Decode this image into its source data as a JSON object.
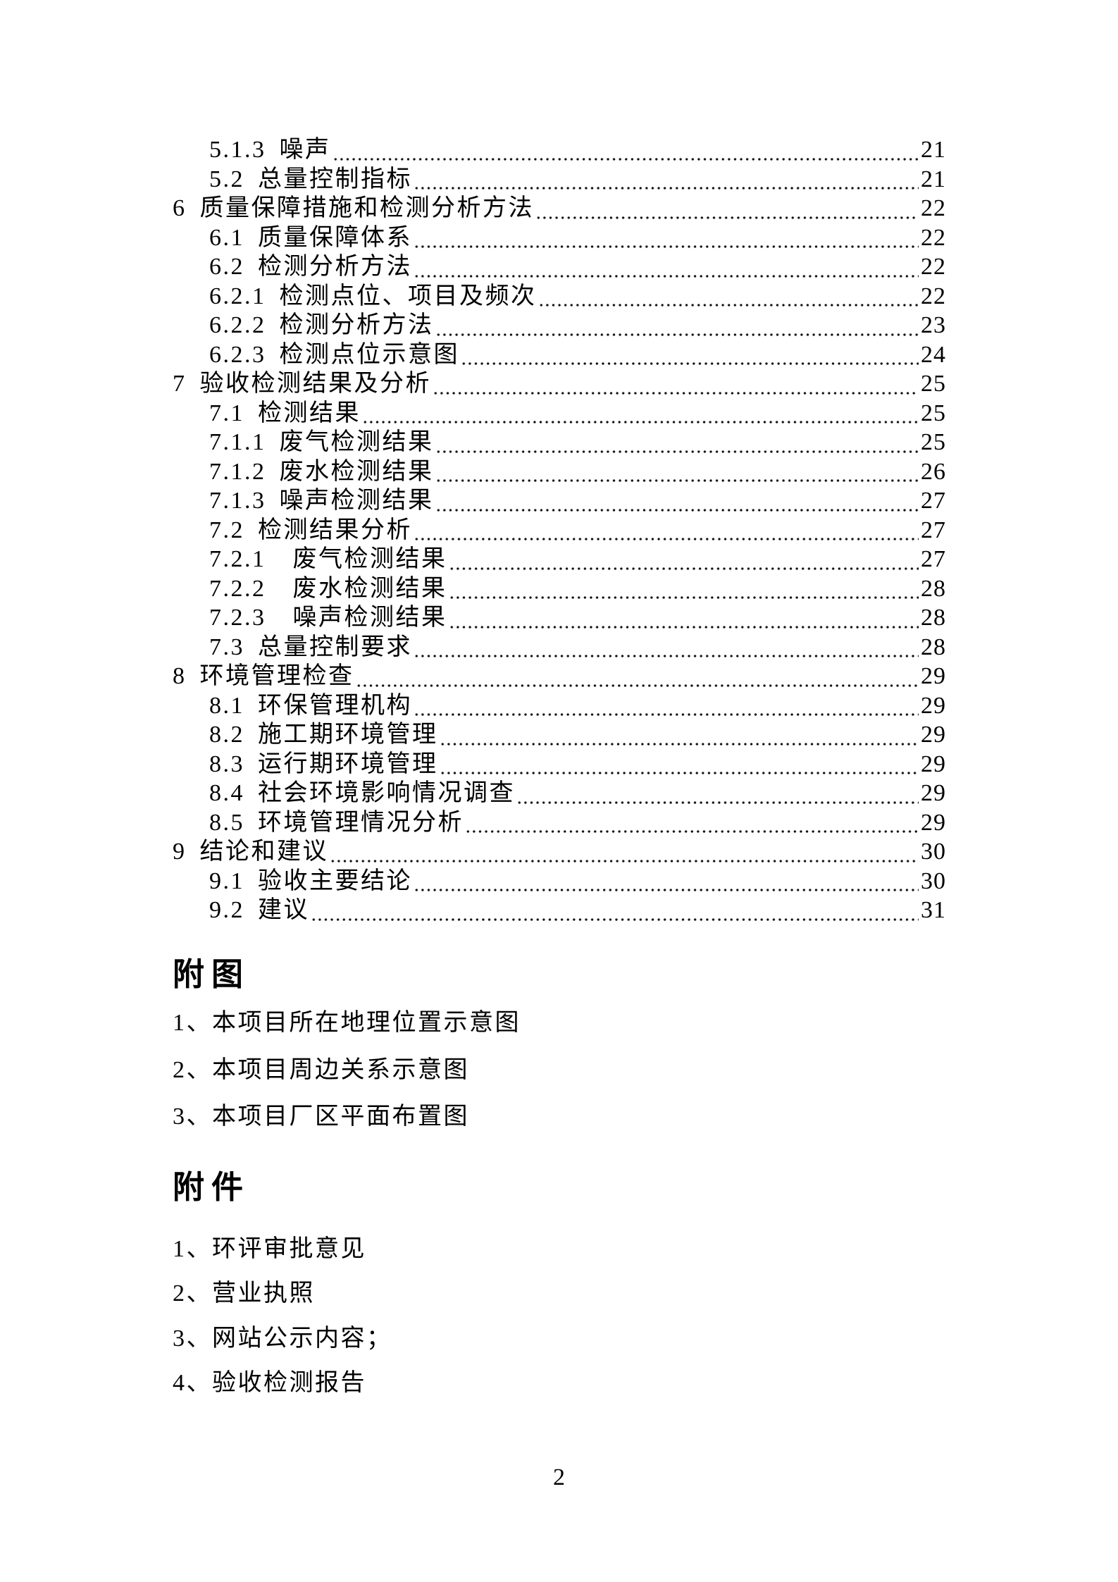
{
  "toc": {
    "items": [
      {
        "label": "5.1.3 噪声",
        "page": "21",
        "level": 2
      },
      {
        "label": "5.2 总量控制指标",
        "page": "21",
        "level": 2
      },
      {
        "label": "6 质量保障措施和检测分析方法",
        "page": "22",
        "level": 1
      },
      {
        "label": "6.1 质量保障体系",
        "page": "22",
        "level": 2
      },
      {
        "label": "6.2 检测分析方法",
        "page": "22",
        "level": 2
      },
      {
        "label": "6.2.1 检测点位、项目及频次",
        "page": "22",
        "level": 2
      },
      {
        "label": "6.2.2 检测分析方法",
        "page": "23",
        "level": 2
      },
      {
        "label": "6.2.3 检测点位示意图",
        "page": "24",
        "level": 2
      },
      {
        "label": "7 验收检测结果及分析",
        "page": "25",
        "level": 1
      },
      {
        "label": "7.1 检测结果",
        "page": "25",
        "level": 2
      },
      {
        "label": "7.1.1 废气检测结果",
        "page": "25",
        "level": 2
      },
      {
        "label": "7.1.2 废水检测结果",
        "page": "26",
        "level": 2
      },
      {
        "label": "7.1.3 噪声检测结果",
        "page": "27",
        "level": 2
      },
      {
        "label": "7.2 检测结果分析",
        "page": "27",
        "level": 2
      },
      {
        "label": "7.2.1  废气检测结果",
        "page": "27",
        "level": 2
      },
      {
        "label": "7.2.2  废水检测结果",
        "page": "28",
        "level": 2
      },
      {
        "label": "7.2.3  噪声检测结果",
        "page": "28",
        "level": 2
      },
      {
        "label": "7.3 总量控制要求",
        "page": "28",
        "level": 2
      },
      {
        "label": "8 环境管理检查",
        "page": "29",
        "level": 1
      },
      {
        "label": "8.1 环保管理机构",
        "page": "29",
        "level": 2
      },
      {
        "label": "8.2 施工期环境管理",
        "page": "29",
        "level": 2
      },
      {
        "label": "8.3 运行期环境管理",
        "page": "29",
        "level": 2
      },
      {
        "label": "8.4 社会环境影响情况调查",
        "page": "29",
        "level": 2
      },
      {
        "label": "8.5 环境管理情况分析",
        "page": "29",
        "level": 2
      },
      {
        "label": "9 结论和建议",
        "page": "30",
        "level": 1
      },
      {
        "label": "9.1 验收主要结论",
        "page": "30",
        "level": 2
      },
      {
        "label": "9.2 建议",
        "page": "31",
        "level": 2
      }
    ]
  },
  "figures": {
    "title": "附图",
    "items": [
      "1、本项目所在地理位置示意图",
      "2、本项目周边关系示意图",
      "3、本项目厂区平面布置图"
    ]
  },
  "attachments": {
    "title": "附件",
    "items": [
      "1、环评审批意见",
      "2、营业执照",
      "3、网站公示内容；",
      "4、验收检测报告"
    ]
  },
  "footer": {
    "page_number": "2"
  }
}
